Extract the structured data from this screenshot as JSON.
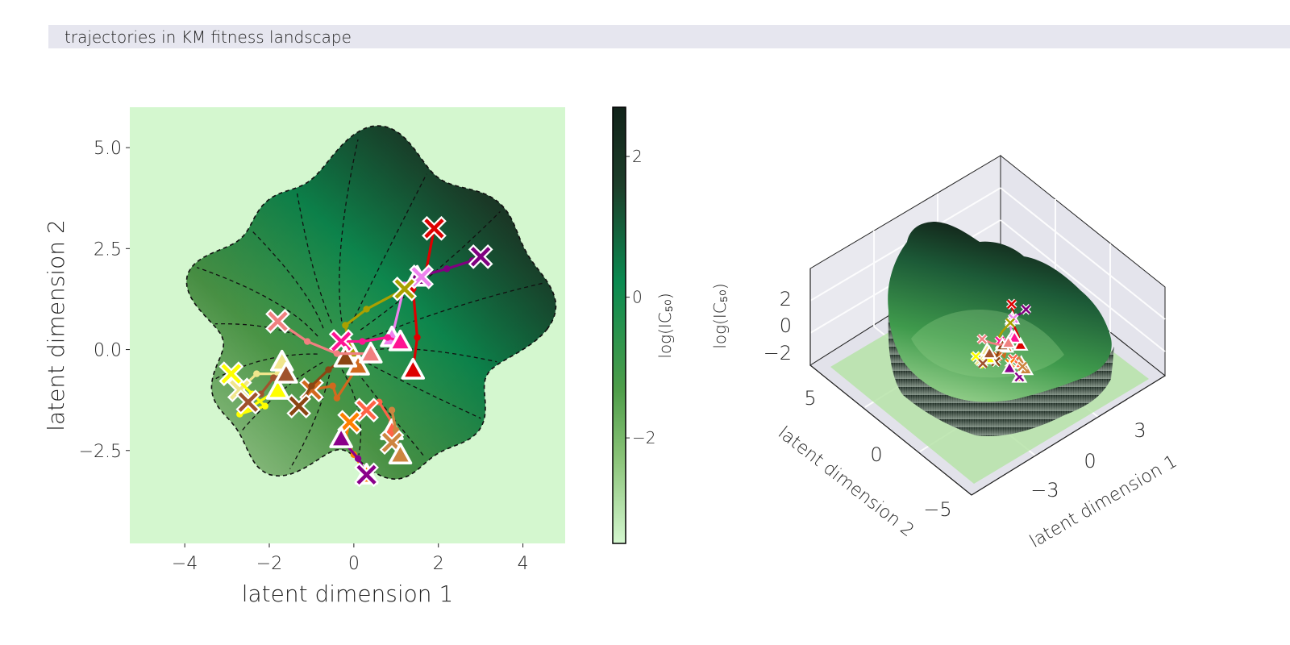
{
  "figure": {
    "title": "trajectories in KM fitness landscape"
  },
  "chart_data": [
    {
      "type": "heatmap",
      "title": "",
      "xlabel": "latent dimension 1",
      "ylabel": "latent dimension 2",
      "xlim": [
        -5.3,
        5.0
      ],
      "ylim": [
        -4.8,
        6.0
      ],
      "xticks": [
        -4,
        -2,
        0,
        2,
        4
      ],
      "xtick_labels": [
        "−4",
        "−2",
        "0",
        "2",
        "4"
      ],
      "yticks": [
        5.0,
        2.5,
        0.0,
        -2.5
      ],
      "ytick_labels": [
        "5.0",
        "2.5",
        "0.0",
        "−2.5"
      ],
      "background_color": "#d4f7cf",
      "colorbar": {
        "label": "log(IC₅₀)",
        "range": [
          -3.5,
          2.7
        ],
        "ticks": [
          2,
          0,
          -2
        ],
        "tick_labels": [
          "2",
          "0",
          "−2"
        ],
        "colors": [
          "#d4f7cf",
          "#64ad55",
          "#0a8a50",
          "#1b3a28",
          "#13251a"
        ]
      },
      "trajectories": [
        {
          "color": "#dd0000",
          "points": [
            [
              1.9,
              3.0
            ],
            [
              1.7,
              1.9
            ],
            [
              1.4,
              1.5
            ],
            [
              1.5,
              0.3
            ],
            [
              1.4,
              -0.5
            ]
          ],
          "start_marker": "cross",
          "end_marker": "triangle"
        },
        {
          "color": "#800080",
          "points": [
            [
              3.0,
              2.3
            ],
            [
              2.8,
              2.2
            ],
            [
              2.2,
              2.0
            ],
            [
              1.5,
              1.8
            ]
          ],
          "start_marker": "cross",
          "end_marker": "triangle"
        },
        {
          "color": "#ee82ee",
          "points": [
            [
              1.6,
              1.8
            ],
            [
              1.2,
              1.6
            ],
            [
              0.9,
              0.3
            ]
          ],
          "start_marker": "cross",
          "end_marker": "triangle"
        },
        {
          "color": "#aaa000",
          "points": [
            [
              1.2,
              1.5
            ],
            [
              0.3,
              1.0
            ],
            [
              -0.2,
              0.6
            ],
            [
              -0.1,
              0.0
            ]
          ],
          "start_marker": "cross",
          "end_marker": "triangle"
        },
        {
          "color": "#ff1493",
          "points": [
            [
              -0.3,
              0.2
            ],
            [
              0.2,
              0.2
            ],
            [
              0.8,
              0.3
            ],
            [
              1.1,
              0.2
            ]
          ],
          "start_marker": "cross",
          "end_marker": "triangle"
        },
        {
          "color": "#d2691e",
          "points": [
            [
              -1.0,
              -1.0
            ],
            [
              -0.5,
              -0.9
            ],
            [
              -0.4,
              -1.2
            ],
            [
              0.1,
              -0.4
            ]
          ],
          "start_marker": "cross",
          "end_marker": "triangle"
        },
        {
          "color": "#8b4513",
          "points": [
            [
              -1.3,
              -1.4
            ],
            [
              -1.0,
              -0.9
            ],
            [
              -0.6,
              -0.5
            ],
            [
              -0.2,
              -0.2
            ]
          ],
          "start_marker": "cross",
          "end_marker": "triangle"
        },
        {
          "color": "#f0e68c",
          "points": [
            [
              -2.7,
              -1.0
            ],
            [
              -2.3,
              -0.6
            ],
            [
              -1.8,
              -0.6
            ],
            [
              -1.7,
              -0.3
            ]
          ],
          "start_marker": "cross",
          "end_marker": "triangle"
        },
        {
          "color": "#f08080",
          "points": [
            [
              -1.8,
              0.7
            ],
            [
              -1.1,
              0.2
            ],
            [
              -0.4,
              -0.1
            ],
            [
              0.4,
              -0.1
            ]
          ],
          "start_marker": "cross",
          "end_marker": "triangle"
        },
        {
          "color": "#ff6347",
          "points": [
            [
              0.3,
              -1.5
            ],
            [
              0.6,
              -1.3
            ],
            [
              0.9,
              -1.8
            ],
            [
              0.9,
              -2.0
            ]
          ],
          "start_marker": "cross",
          "end_marker": "triangle"
        },
        {
          "color": "#ff7f00",
          "points": [
            [
              -0.1,
              -1.8
            ],
            [
              -0.2,
              -2.2
            ],
            [
              0.0,
              -2.6
            ],
            [
              0.3,
              -3.1
            ]
          ],
          "start_marker": "cross",
          "end_marker": "triangle"
        },
        {
          "color": "#8b008b",
          "points": [
            [
              0.3,
              -3.1
            ],
            [
              0.1,
              -2.7
            ],
            [
              -0.3,
              -2.2
            ]
          ],
          "start_marker": "cross",
          "end_marker": "triangle"
        },
        {
          "color": "#cd853f",
          "points": [
            [
              0.9,
              -2.3
            ],
            [
              1.0,
              -2.0
            ],
            [
              0.9,
              -1.5
            ],
            [
              1.1,
              -2.6
            ]
          ],
          "start_marker": "cross",
          "end_marker": "triangle"
        },
        {
          "color": "#ffff00",
          "points": [
            [
              -2.9,
              -0.6
            ],
            [
              -2.4,
              -1.1
            ],
            [
              -2.1,
              -1.4
            ],
            [
              -2.7,
              -1.6
            ],
            [
              -1.8,
              -1.0
            ]
          ],
          "start_marker": "cross",
          "end_marker": "triangle"
        },
        {
          "color": "#a0522d",
          "points": [
            [
              -2.5,
              -1.3
            ],
            [
              -2.2,
              -1.1
            ],
            [
              -1.9,
              -0.7
            ],
            [
              -1.6,
              -0.6
            ]
          ],
          "start_marker": "cross",
          "end_marker": "triangle"
        }
      ]
    },
    {
      "type": "surface3d",
      "title": "",
      "xlabel": "latent dimension 1",
      "ylabel": "latent dimension 2",
      "zlabel": "log(IC₅₀)",
      "xticks": [
        -3,
        0,
        3
      ],
      "xtick_labels": [
        "−3",
        "0",
        "3"
      ],
      "yticks": [
        5,
        0,
        -5
      ],
      "ytick_labels": [
        "5",
        "0",
        "−5"
      ],
      "zticks": [
        2,
        0,
        -2
      ],
      "ztick_labels": [
        "2",
        "0",
        "−2"
      ],
      "grid": true
    }
  ]
}
